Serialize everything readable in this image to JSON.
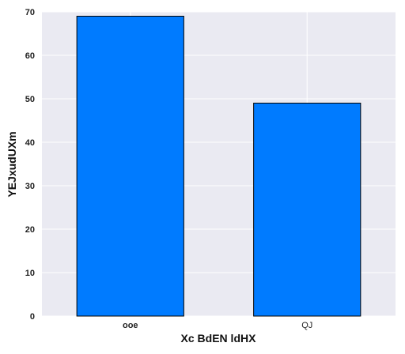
{
  "chart_data": {
    "type": "bar",
    "categories": [
      "ooe",
      "QJ"
    ],
    "values": [
      69,
      49
    ],
    "xlabel": "Xc BdEN ldHX",
    "ylabel": "YEJxudUXm",
    "ylim": [
      0,
      70
    ],
    "yticks": [
      0,
      10,
      20,
      30,
      40,
      50,
      60,
      70
    ],
    "grid": true,
    "colors": {
      "bar_fill": "#007BFF",
      "bar_edge": "#000000",
      "plot_background": "#EAEAF2",
      "grid": "#FFFFFF"
    }
  }
}
